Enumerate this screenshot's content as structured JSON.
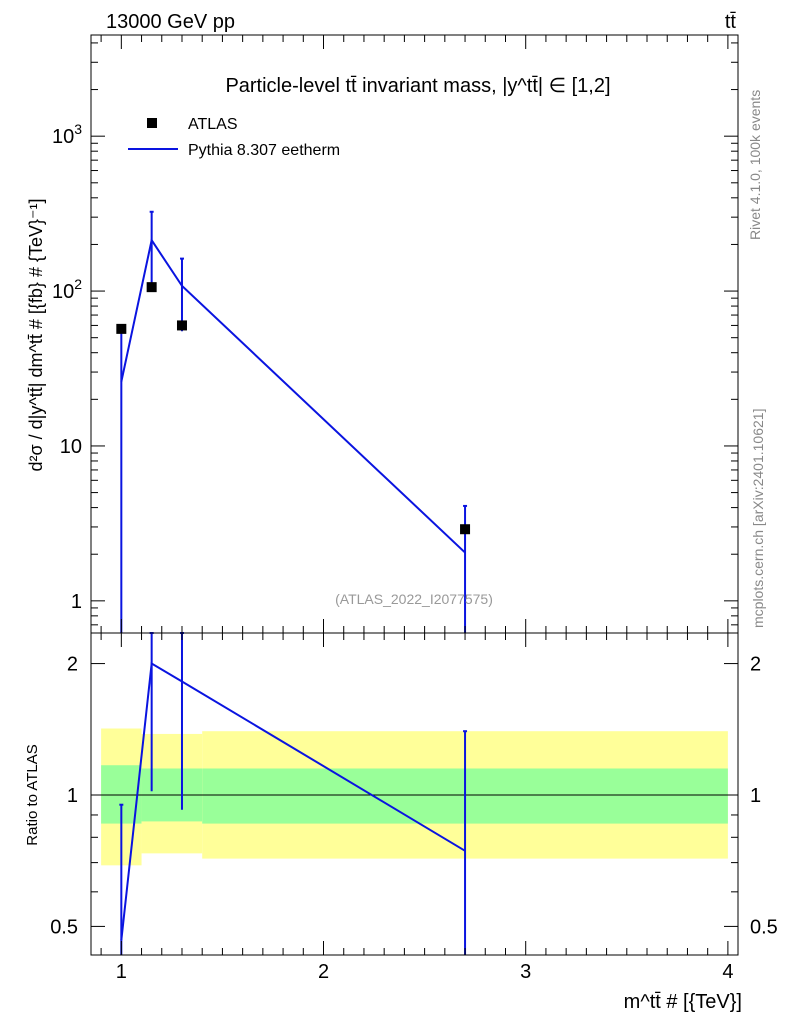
{
  "header": {
    "left": "13000 GeV pp",
    "right": "tt̄"
  },
  "side_labels": {
    "rivet": "Rivet 4.1.0,  100k events",
    "mcplots": "mcplots.cern.ch [arXiv:2401.10621]"
  },
  "colors": {
    "mc": "#0a14e0",
    "data": "#000000",
    "band_inner": "#99ff99",
    "band_outer": "#ffff99",
    "watermark": "#999999"
  },
  "chart_data": [
    {
      "type": "scatter",
      "title": "Particle-level tt̄ invariant mass, |y^tt̄| ∈ [1,2]",
      "ylabel": "d²σ / d|y^tt̄| dm^tt̄ # [{fb} # {TeV}⁻¹]",
      "yscale": "log",
      "ylim": [
        0.62,
        4500
      ],
      "xlim": [
        0.85,
        4.05
      ],
      "watermark": "(ATLAS_2022_I2077575)",
      "legend": {
        "placement": "top-left",
        "entries": [
          "ATLAS",
          "Pythia 8.307 eetherm"
        ]
      },
      "ytick_labels": [
        {
          "value": 1,
          "label": "1"
        },
        {
          "value": 10,
          "label": "10"
        },
        {
          "value": 100,
          "label": "10",
          "exp": "2"
        },
        {
          "value": 1000,
          "label": "10",
          "exp": "3"
        }
      ],
      "series": [
        {
          "name": "ATLAS",
          "style": "points",
          "points": [
            {
              "x": 1.0,
              "y": 57
            },
            {
              "x": 1.15,
              "y": 106
            },
            {
              "x": 1.3,
              "y": 60
            },
            {
              "x": 2.7,
              "y": 2.9
            }
          ]
        },
        {
          "name": "Pythia 8.307 eetherm",
          "style": "line",
          "points": [
            {
              "x": 1.0,
              "y": 26,
              "ylo": 0.5,
              "yhi": 57
            },
            {
              "x": 1.15,
              "y": 213,
              "ylo": 108,
              "yhi": 325
            },
            {
              "x": 1.3,
              "y": 108,
              "ylo": 55,
              "yhi": 162
            },
            {
              "x": 2.7,
              "y": 2.05,
              "ylo": 0.5,
              "yhi": 4.1
            }
          ]
        }
      ]
    },
    {
      "type": "line",
      "ylabel": "Ratio to ATLAS",
      "xlabel": "m^tt̄ # [{TeV}]",
      "yscale": "log",
      "ylim": [
        0.43,
        2.35
      ],
      "xlim": [
        0.85,
        4.05
      ],
      "reference_line": 1,
      "ytick_labels": [
        {
          "value": 0.5,
          "label": "0.5"
        },
        {
          "value": 1,
          "label": "1"
        },
        {
          "value": 2,
          "label": "2"
        }
      ],
      "xtick_labels": [
        {
          "value": 1,
          "label": "1"
        },
        {
          "value": 2,
          "label": "2"
        },
        {
          "value": 3,
          "label": "3"
        },
        {
          "value": 4,
          "label": "4"
        }
      ],
      "uncertainty_bands": [
        {
          "x0": 0.9,
          "x1": 1.1,
          "inner": [
            0.86,
            1.17
          ],
          "outer": [
            0.69,
            1.42
          ]
        },
        {
          "x0": 1.1,
          "x1": 1.4,
          "inner": [
            0.87,
            1.15
          ],
          "outer": [
            0.735,
            1.38
          ]
        },
        {
          "x0": 1.4,
          "x1": 4.0,
          "inner": [
            0.86,
            1.15
          ],
          "outer": [
            0.715,
            1.4
          ]
        }
      ],
      "series": [
        {
          "name": "Pythia 8.307 eetherm",
          "points": [
            {
              "x": 1.0,
              "y": 0.465,
              "ylo": 0.43,
              "yhi": 0.95
            },
            {
              "x": 1.15,
              "y": 2.0,
              "ylo": 1.02,
              "yhi": 2.35
            },
            {
              "x": 1.3,
              "y": 1.82,
              "ylo": 0.925,
              "yhi": 2.35
            },
            {
              "x": 2.7,
              "y": 0.745,
              "ylo": 0.43,
              "yhi": 1.4
            }
          ]
        }
      ]
    }
  ]
}
